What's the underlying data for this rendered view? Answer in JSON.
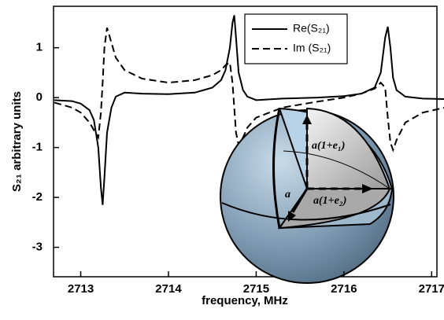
{
  "chart_data": {
    "type": "line",
    "xlabel": "frequency,   MHz",
    "ylabel": "S₂₁   arbitrary units",
    "x": [
      2712.7,
      2712.9,
      2713.0,
      2713.1,
      2713.15,
      2713.2,
      2713.23,
      2713.25,
      2713.27,
      2713.3,
      2713.35,
      2713.4,
      2713.5,
      2713.7,
      2714.0,
      2714.3,
      2714.5,
      2714.6,
      2714.65,
      2714.7,
      2714.73,
      2714.75,
      2714.77,
      2714.8,
      2714.85,
      2714.9,
      2715.0,
      2715.3,
      2715.7,
      2716.0,
      2716.2,
      2716.35,
      2716.42,
      2716.47,
      2716.5,
      2716.53,
      2716.56,
      2716.6,
      2716.7,
      2716.9,
      2717.15
    ],
    "series": [
      {
        "name": "Re(S₂₁)",
        "color": "#000000",
        "dash": "solid",
        "values": [
          -0.05,
          -0.07,
          -0.12,
          -0.25,
          -0.45,
          -1.0,
          -1.8,
          -2.15,
          -1.6,
          -0.7,
          -0.2,
          0.02,
          0.1,
          0.08,
          0.07,
          0.1,
          0.2,
          0.35,
          0.55,
          1.0,
          1.5,
          1.65,
          1.2,
          0.5,
          0.15,
          0.02,
          -0.05,
          -0.02,
          0.0,
          0.03,
          0.08,
          0.2,
          0.5,
          1.2,
          1.42,
          1.0,
          0.4,
          0.15,
          0.02,
          -0.02,
          -0.03
        ]
      },
      {
        "name": "Im (S₂₁)",
        "color": "#000000",
        "dash": "dashed",
        "values": [
          -0.1,
          -0.2,
          -0.3,
          -0.5,
          -0.65,
          -0.8,
          -0.3,
          0.3,
          1.0,
          1.4,
          1.1,
          0.8,
          0.55,
          0.38,
          0.3,
          0.35,
          0.45,
          0.55,
          0.65,
          0.7,
          0.3,
          -0.2,
          -0.7,
          -0.95,
          -0.8,
          -0.6,
          -0.4,
          -0.2,
          -0.08,
          0.0,
          0.08,
          0.18,
          0.3,
          0.2,
          -0.4,
          -0.9,
          -1.05,
          -0.85,
          -0.5,
          -0.3,
          -0.2
        ]
      }
    ],
    "xlim": [
      2712.69,
      2717.06
    ],
    "ylim": [
      -3.59,
      1.83
    ],
    "xticks": [
      2713,
      2714,
      2715,
      2716,
      2717
    ],
    "yticks": [
      -3,
      -2,
      -1,
      0,
      1
    ],
    "legend": "upper right",
    "annotations": [
      "a(1+e₁)",
      "a(1+e₂)",
      "a"
    ]
  }
}
